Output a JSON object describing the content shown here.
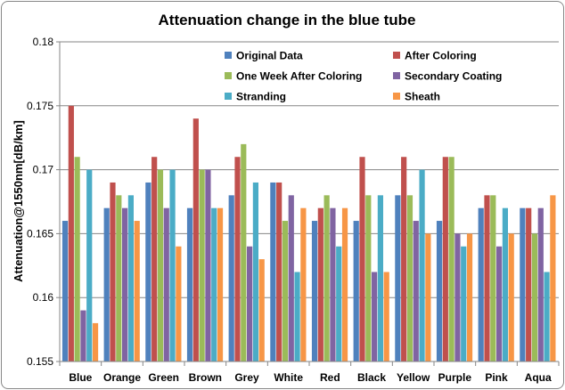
{
  "chart_data": {
    "type": "bar",
    "title": "Attenuation change in the blue tube",
    "xlabel": "",
    "ylabel": "Attenuation@1550nm[dB/km]",
    "ylim": [
      0.155,
      0.18
    ],
    "yticks": [
      "0.155",
      "0.16",
      "0.165",
      "0.17",
      "0.175",
      "0.18"
    ],
    "grid": "horizontal",
    "legend_position": "top-right",
    "categories": [
      "Blue",
      "Orange",
      "Green",
      "Brown",
      "Grey",
      "White",
      "Red",
      "Black",
      "Yellow",
      "Purple",
      "Pink",
      "Aqua"
    ],
    "series": [
      {
        "name": "Original Data",
        "color": "#4F81BD",
        "values": [
          0.166,
          0.167,
          0.169,
          0.167,
          0.168,
          0.169,
          0.166,
          0.166,
          0.168,
          0.166,
          0.167,
          0.167
        ]
      },
      {
        "name": "After Coloring",
        "color": "#C0504D",
        "values": [
          0.175,
          0.169,
          0.171,
          0.174,
          0.171,
          0.169,
          0.167,
          0.171,
          0.171,
          0.171,
          0.168,
          0.167
        ]
      },
      {
        "name": "One Week After Coloring",
        "color": "#9BBB59",
        "values": [
          0.171,
          0.168,
          0.17,
          0.17,
          0.172,
          0.166,
          0.168,
          0.168,
          0.168,
          0.171,
          0.168,
          0.165
        ]
      },
      {
        "name": "Secondary Coating",
        "color": "#8064A2",
        "values": [
          0.159,
          0.167,
          0.167,
          0.17,
          0.164,
          0.168,
          0.167,
          0.162,
          0.166,
          0.165,
          0.164,
          0.167
        ]
      },
      {
        "name": "Stranding",
        "color": "#4BACC6",
        "values": [
          0.17,
          0.168,
          0.17,
          0.167,
          0.169,
          0.162,
          0.164,
          0.168,
          0.17,
          0.164,
          0.167,
          0.162
        ]
      },
      {
        "name": "Sheath",
        "color": "#F79646",
        "values": [
          0.158,
          0.166,
          0.164,
          0.167,
          0.163,
          0.167,
          0.167,
          0.162,
          0.165,
          0.165,
          0.165,
          0.168
        ]
      }
    ]
  }
}
